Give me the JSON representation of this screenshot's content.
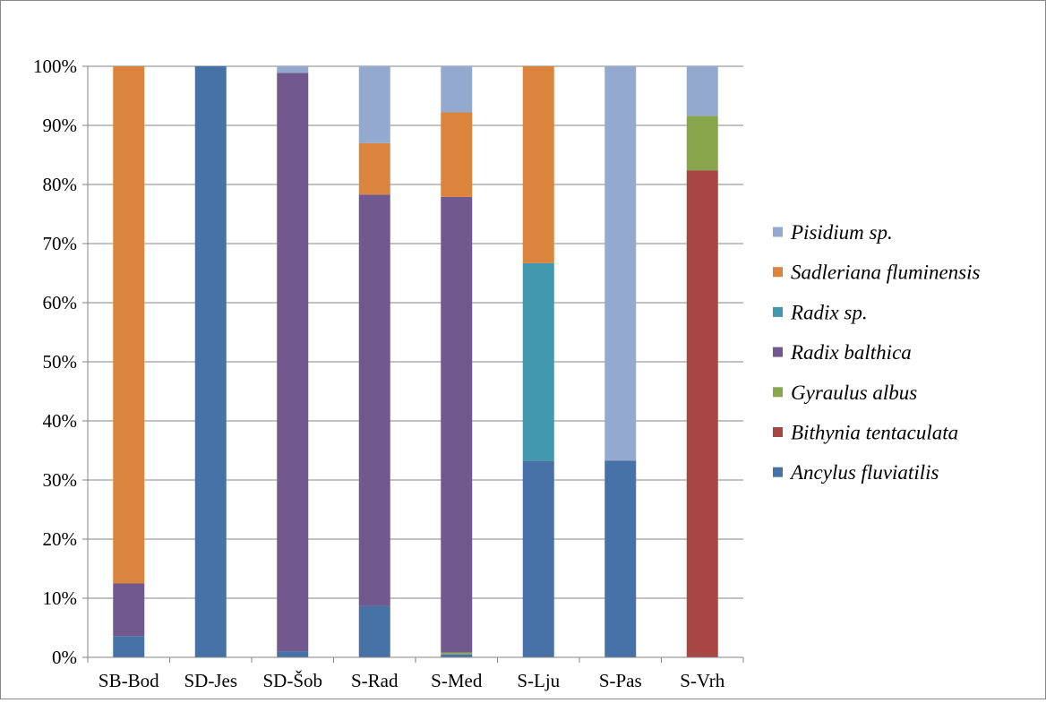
{
  "chart_data": {
    "type": "bar",
    "stacked": true,
    "percent": true,
    "categories": [
      "SB-Bod",
      "SD-Jes",
      "SD-Šob",
      "S-Rad",
      "S-Med",
      "S-Lju",
      "S-Pas",
      "S-Vrh"
    ],
    "series": [
      {
        "name": "Ancylus fluviatilis",
        "color": "#4672A8",
        "values": [
          3.6,
          100,
          1.0,
          8.7,
          0.5,
          33.3,
          33.3,
          0
        ]
      },
      {
        "name": "Bithynia tentaculata",
        "color": "#A84643",
        "values": [
          0,
          0,
          0,
          0,
          0,
          0,
          0,
          82.4
        ]
      },
      {
        "name": "Gyraulus albus",
        "color": "#8AA64D",
        "values": [
          0,
          0,
          0,
          0,
          0.3,
          0,
          0,
          9.2
        ]
      },
      {
        "name": "Radix balthica",
        "color": "#71598F",
        "values": [
          8.9,
          0,
          97.9,
          69.6,
          77.1,
          0,
          0,
          0
        ]
      },
      {
        "name": "Radix sp.",
        "color": "#4198AF",
        "values": [
          0,
          0,
          0,
          0,
          0,
          33.4,
          0,
          0
        ]
      },
      {
        "name": "Sadleriana fluminensis",
        "color": "#DB843D",
        "values": [
          87.5,
          0,
          0,
          8.7,
          14.3,
          33.3,
          0,
          0
        ]
      },
      {
        "name": "Pisidium sp.",
        "color": "#93A9CF",
        "values": [
          0,
          0,
          1.1,
          13.0,
          7.8,
          0,
          66.7,
          8.4
        ]
      }
    ],
    "yticks": [
      "0%",
      "10%",
      "20%",
      "30%",
      "40%",
      "50%",
      "60%",
      "70%",
      "80%",
      "90%",
      "100%"
    ],
    "ylim": [
      0,
      100
    ],
    "grid": true,
    "legend": "right",
    "legend_order": [
      "Pisidium sp.",
      "Sadleriana fluminensis",
      "Radix sp.",
      "Radix balthica",
      "Gyraulus albus",
      "Bithynia tentaculata",
      "Ancylus fluviatilis"
    ]
  }
}
